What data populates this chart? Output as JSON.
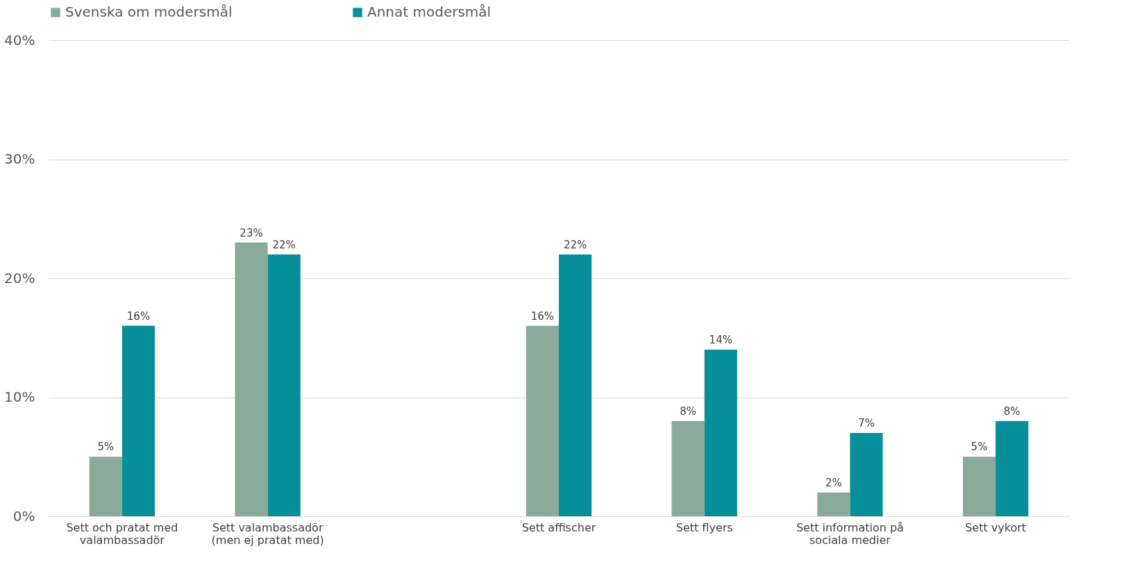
{
  "chart_data": {
    "type": "bar",
    "categories": [
      "Sett och pratat med valambassadör",
      "Sett valambassadör (men ej pratat med)",
      null,
      "Sett affischer",
      "Sett flyers",
      "Sett information på sociala medier",
      "Sett vykort"
    ],
    "series": [
      {
        "name": "Svenska om modersmål",
        "color": "#8aab9a",
        "values": [
          5,
          23,
          null,
          16,
          8,
          2,
          5
        ],
        "value_labels": [
          "5%",
          "23%",
          null,
          "16%",
          "8%",
          "2%",
          "5%"
        ]
      },
      {
        "name": "Annat modersmål",
        "color": "#078f99",
        "values": [
          16,
          22,
          null,
          22,
          14,
          7,
          8
        ],
        "value_labels": [
          "16%",
          "22%",
          null,
          "22%",
          "14%",
          "7%",
          "8%"
        ]
      }
    ],
    "ylim": [
      0,
      40
    ],
    "yticks": [
      {
        "value": 0,
        "label": "0%"
      },
      {
        "value": 10,
        "label": "10%"
      },
      {
        "value": 20,
        "label": "20%"
      },
      {
        "value": 30,
        "label": "30%"
      },
      {
        "value": 40,
        "label": "40%"
      }
    ],
    "grid": "y",
    "legend": "top"
  }
}
